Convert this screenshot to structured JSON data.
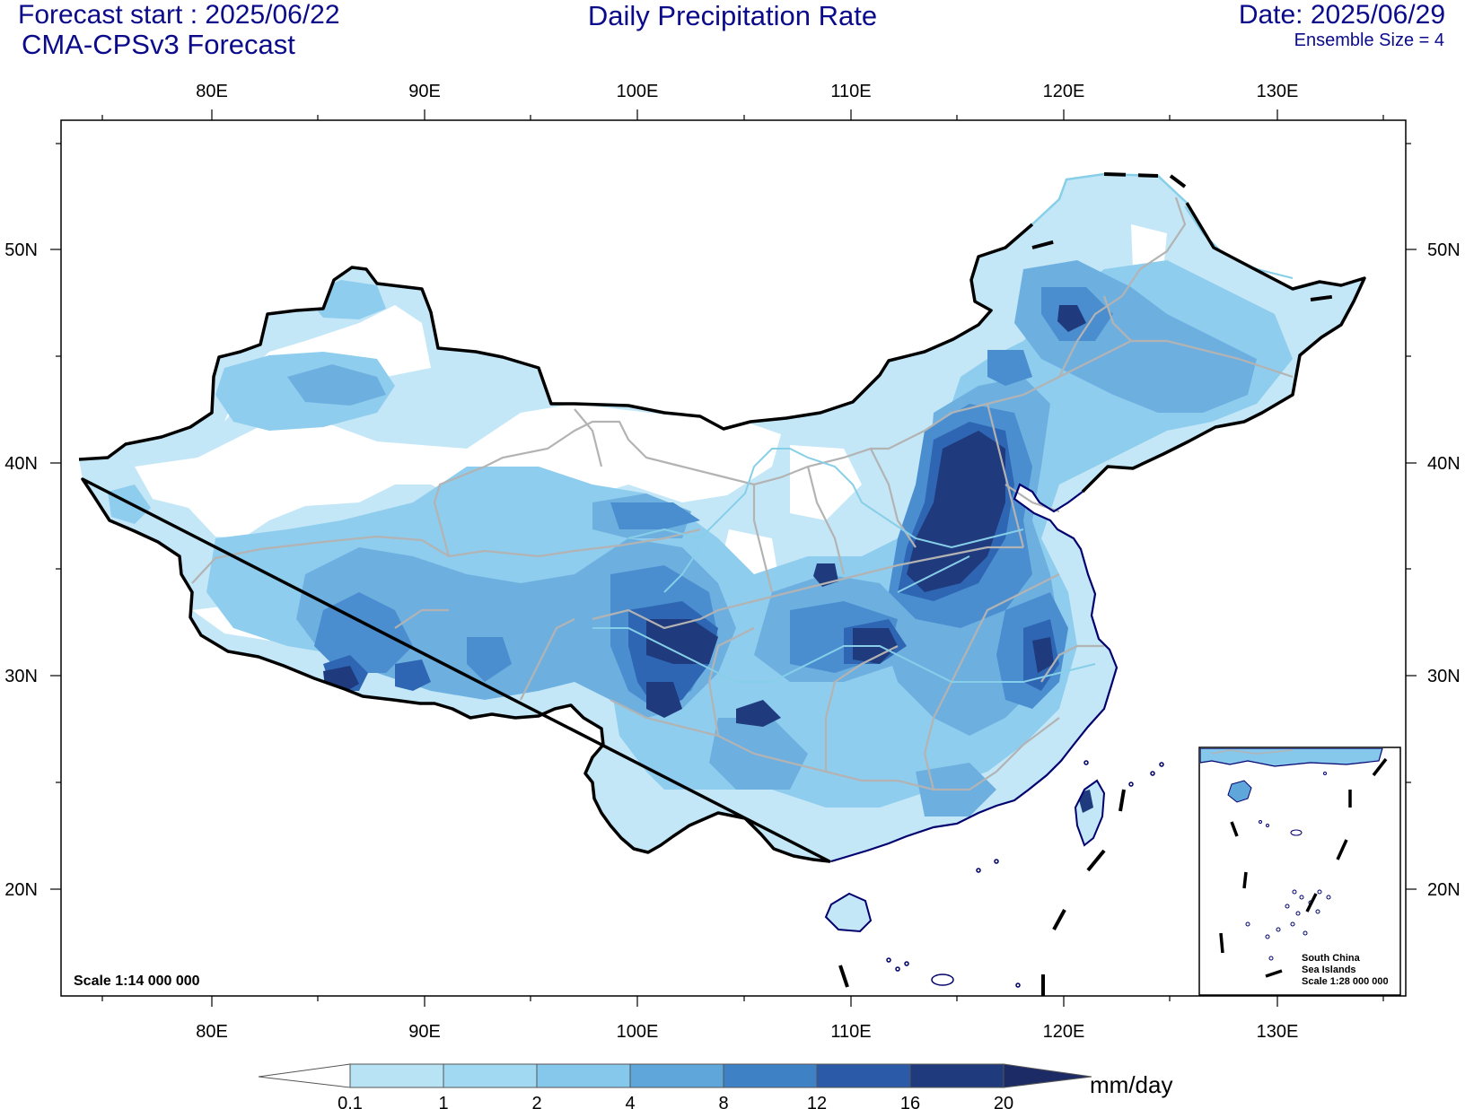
{
  "header": {
    "forecast_start": "Forecast start : 2025/06/22",
    "model": "CMA-CPSv3 Forecast",
    "title": "Daily Precipitation Rate",
    "date": "Date: 2025/06/29",
    "ensemble": "Ensemble Size = 4"
  },
  "axes": {
    "lon_ticks": [
      "80E",
      "90E",
      "100E",
      "110E",
      "120E",
      "130E"
    ],
    "lat_ticks": [
      "50N",
      "40N",
      "30N",
      "20N"
    ]
  },
  "scale_main": "Scale 1:14 000 000",
  "inset": {
    "label_line1": "South China",
    "label_line2": "Sea Islands",
    "label_line3": "Scale 1:28 000 000"
  },
  "colorbar": {
    "unit": "mm/day",
    "levels": [
      "0.1",
      "1",
      "2",
      "4",
      "8",
      "12",
      "16",
      "20"
    ],
    "colors": [
      "#b8e3f5",
      "#a2d9f2",
      "#86c8ec",
      "#5fa6da",
      "#3f81c5",
      "#2b5aa8",
      "#1f3b7d"
    ]
  },
  "palette": {
    "border": "#000000",
    "province": "#b3b3b3",
    "river": "#87cfe8",
    "coast": "#00006e"
  }
}
